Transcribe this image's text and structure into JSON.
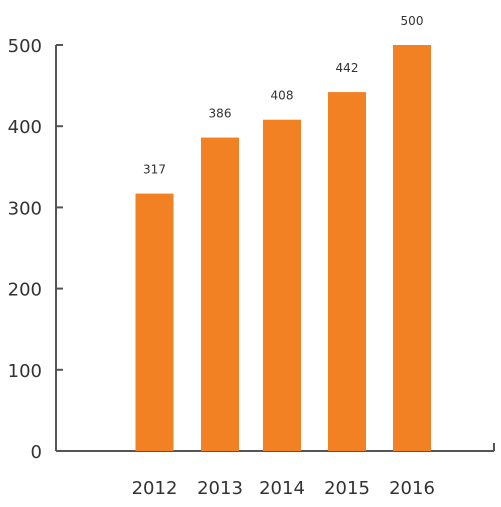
{
  "chart_data": {
    "type": "bar",
    "categories": [
      "2012",
      "2013",
      "2014",
      "2015",
      "2016"
    ],
    "values": [
      317,
      386,
      408,
      442,
      500
    ],
    "data_labels": [
      "317",
      "386",
      "408",
      "442",
      "500"
    ],
    "y_ticks": [
      "0",
      "100",
      "200",
      "300",
      "400",
      "500"
    ],
    "ylim": [
      0,
      500
    ],
    "grid": false,
    "colors": {
      "bar": "#F28124",
      "axis": "#555555"
    }
  }
}
